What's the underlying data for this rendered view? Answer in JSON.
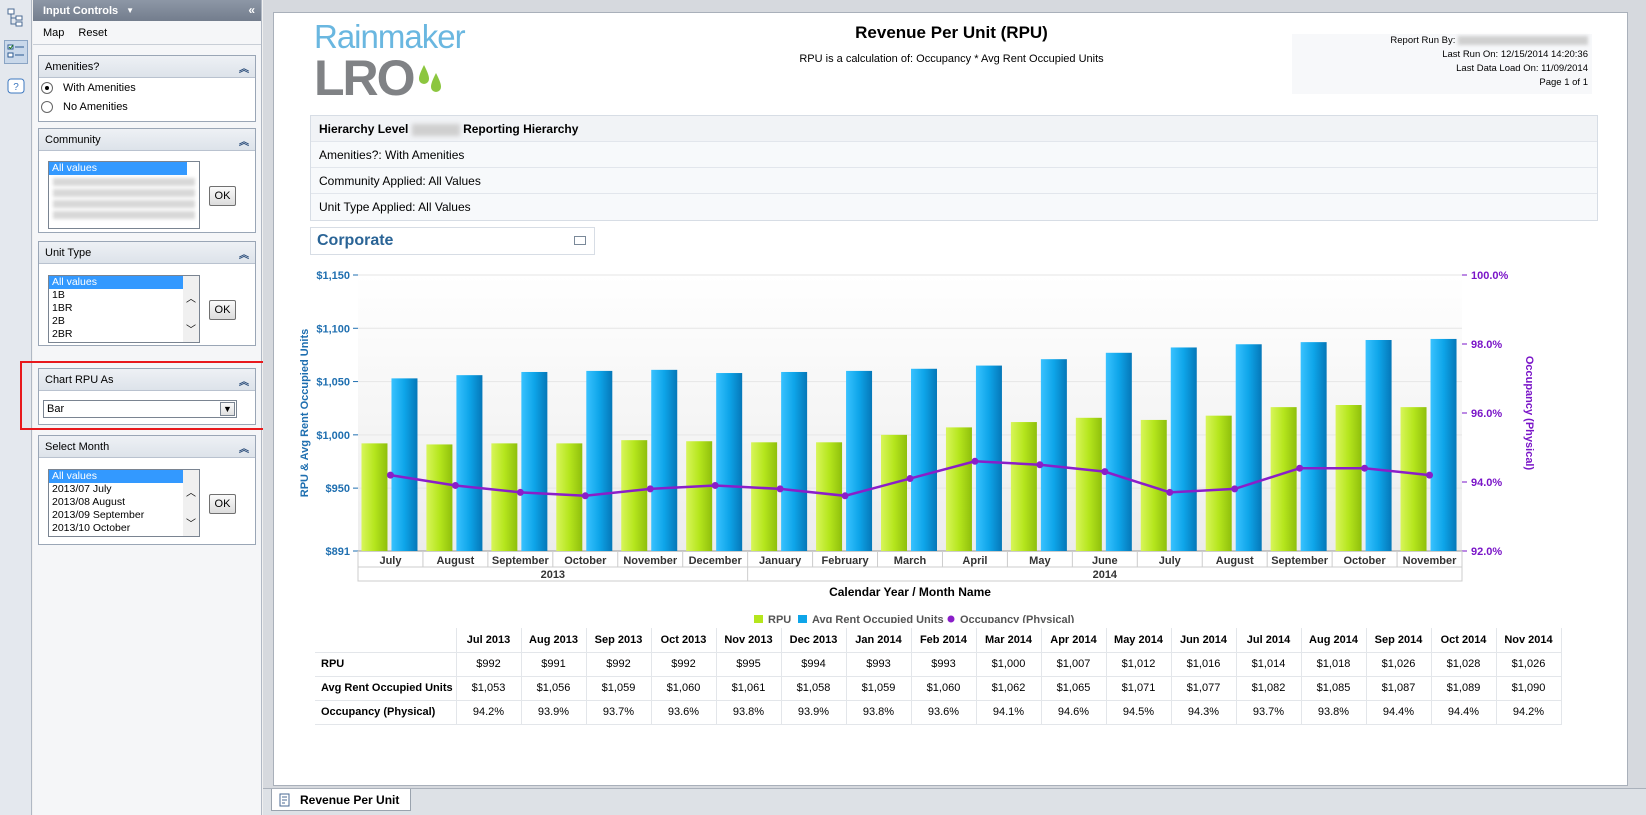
{
  "sidebar": {
    "title": "Input Controls",
    "menu": [
      "Map",
      "Reset"
    ],
    "amenities": {
      "title": "Amenities?",
      "options": [
        {
          "label": "With Amenities",
          "selected": true
        },
        {
          "label": "No Amenities",
          "selected": false
        }
      ]
    },
    "community": {
      "title": "Community",
      "items": [
        "All values"
      ],
      "ok": "OK"
    },
    "unit_type": {
      "title": "Unit Type",
      "items": [
        "All values",
        "1B",
        "1BR",
        "2B",
        "2BR"
      ],
      "ok": "OK"
    },
    "chart_rpu": {
      "title": "Chart RPU As",
      "value": "Bar"
    },
    "select_month": {
      "title": "Select Month",
      "items": [
        "All values",
        "2013/07 July",
        "2013/08 August",
        "2013/09 September",
        "2013/10 October"
      ],
      "ok": "OK"
    }
  },
  "report": {
    "logo_top": "Rainmaker",
    "logo_bottom": "LRO",
    "title": "Revenue Per Unit (RPU)",
    "subtitle": "RPU is a calculation of:  Occupancy * Avg Rent Occupied Units",
    "run_by": "Report Run By:",
    "last_run": "Last Run On: 12/15/2014 14:20:36",
    "last_load": "Last Data Load On: 11/09/2014",
    "page": "Page 1 of 1",
    "hierarchy_prefix": "Hierarchy Level",
    "hierarchy_suffix": " Reporting Hierarchy",
    "amenities_applied": "Amenities?:  With Amenities",
    "community_applied": "Community Applied: All Values",
    "unit_type_applied": "Unit Type Applied: All Values",
    "section": "Corporate",
    "tab": "Revenue Per Unit"
  },
  "colors": {
    "rpu": "#b5e61d",
    "avg": "#0ea5e9",
    "occ": "#8a1ec9",
    "axis_left": "#1f6fb0",
    "axis_right": "#7a15c8"
  },
  "chart_data": {
    "type": "bar",
    "categories": [
      "July",
      "August",
      "September",
      "October",
      "November",
      "December",
      "January",
      "February",
      "March",
      "April",
      "May",
      "June",
      "July",
      "August",
      "September",
      "October",
      "November"
    ],
    "year_groups": [
      {
        "label": "2013",
        "count": 6
      },
      {
        "label": "2014",
        "count": 11
      }
    ],
    "series": [
      {
        "name": "RPU",
        "type": "bar",
        "axis": "left",
        "values": [
          992,
          991,
          992,
          992,
          995,
          994,
          993,
          993,
          1000,
          1007,
          1012,
          1016,
          1014,
          1018,
          1026,
          1028,
          1026
        ]
      },
      {
        "name": "Avg Rent Occupied Units",
        "type": "bar",
        "axis": "left",
        "values": [
          1053,
          1056,
          1059,
          1060,
          1061,
          1058,
          1059,
          1060,
          1062,
          1065,
          1071,
          1077,
          1082,
          1085,
          1087,
          1089,
          1090
        ]
      },
      {
        "name": "Occupancy (Physical)",
        "type": "line",
        "axis": "right",
        "values": [
          94.2,
          93.9,
          93.7,
          93.6,
          93.8,
          93.9,
          93.8,
          93.6,
          94.1,
          94.6,
          94.5,
          94.3,
          93.7,
          93.8,
          94.4,
          94.4,
          94.2
        ]
      }
    ],
    "xlabel": "Calendar Year / Month Name",
    "ylabel": "RPU & Avg Rent Occupied Units",
    "y2label": "Occupancy (Physical)",
    "ylim": [
      891,
      1150
    ],
    "y2lim": [
      92.0,
      100.0
    ],
    "yticks": [
      "$1,150",
      "$1,100",
      "$1,050",
      "$1,000",
      "$950",
      "$891"
    ],
    "yticks_values": [
      1150,
      1100,
      1050,
      1000,
      950,
      891
    ],
    "y2ticks": [
      "100.0%",
      "98.0%",
      "96.0%",
      "94.0%",
      "92.0%"
    ],
    "y2ticks_values": [
      100,
      98,
      96,
      94,
      92
    ],
    "legend": "bottom"
  },
  "table": {
    "columns": [
      "Jul 2013",
      "Aug 2013",
      "Sep 2013",
      "Oct 2013",
      "Nov 2013",
      "Dec 2013",
      "Jan 2014",
      "Feb 2014",
      "Mar 2014",
      "Apr 2014",
      "May 2014",
      "Jun 2014",
      "Jul 2014",
      "Aug 2014",
      "Sep 2014",
      "Oct 2014",
      "Nov 2014"
    ],
    "rows": [
      {
        "label": "RPU",
        "values": [
          "$992",
          "$991",
          "$992",
          "$992",
          "$995",
          "$994",
          "$993",
          "$993",
          "$1,000",
          "$1,007",
          "$1,012",
          "$1,016",
          "$1,014",
          "$1,018",
          "$1,026",
          "$1,028",
          "$1,026"
        ]
      },
      {
        "label": "Avg Rent Occupied Units",
        "values": [
          "$1,053",
          "$1,056",
          "$1,059",
          "$1,060",
          "$1,061",
          "$1,058",
          "$1,059",
          "$1,060",
          "$1,062",
          "$1,065",
          "$1,071",
          "$1,077",
          "$1,082",
          "$1,085",
          "$1,087",
          "$1,089",
          "$1,090"
        ]
      },
      {
        "label": "Occupancy (Physical)",
        "values": [
          "94.2%",
          "93.9%",
          "93.7%",
          "93.6%",
          "93.8%",
          "93.9%",
          "93.8%",
          "93.6%",
          "94.1%",
          "94.6%",
          "94.5%",
          "94.3%",
          "93.7%",
          "93.8%",
          "94.4%",
          "94.4%",
          "94.2%"
        ]
      }
    ]
  }
}
